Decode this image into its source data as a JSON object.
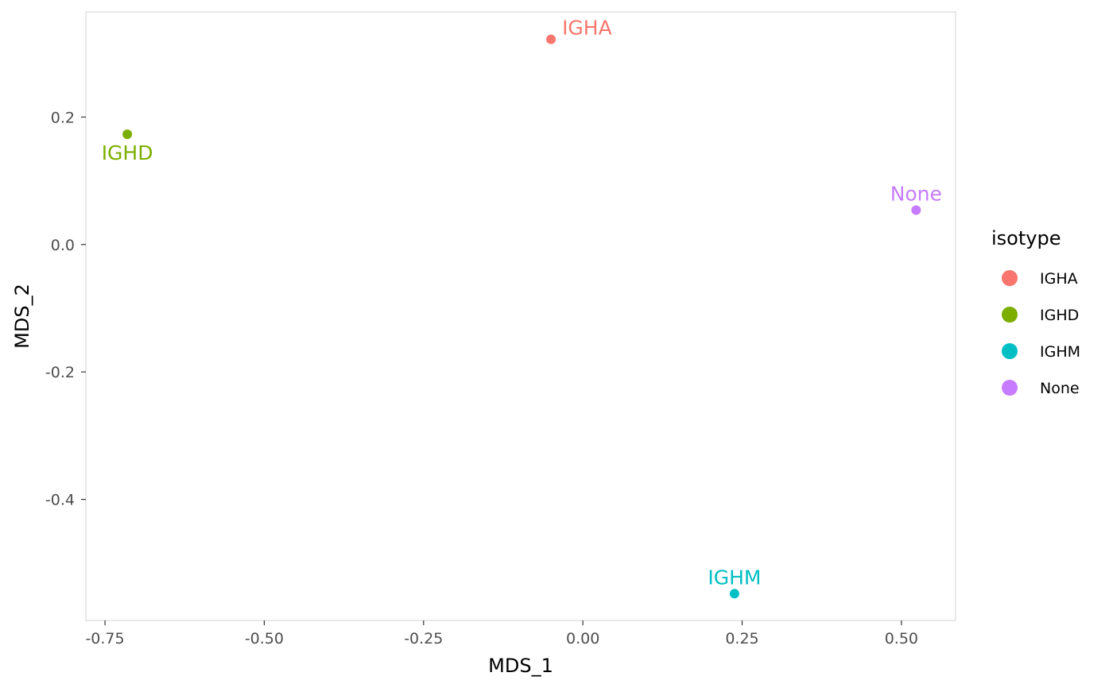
{
  "chart_data": {
    "type": "scatter",
    "xlabel": "MDS_1",
    "ylabel": "MDS_2",
    "xlim": [
      -0.78,
      0.585
    ],
    "ylim": [
      -0.59,
      0.365
    ],
    "x_ticks": [
      -0.75,
      -0.5,
      -0.25,
      0.0,
      0.25,
      0.5
    ],
    "x_tick_labels": [
      "-0.75",
      "-0.50",
      "-0.25",
      "0.00",
      "0.25",
      "0.50"
    ],
    "y_ticks": [
      0.2,
      0.0,
      -0.2,
      -0.4
    ],
    "y_tick_labels": [
      "0.2",
      "0.0",
      "-0.2",
      "-0.4"
    ],
    "grid": false,
    "legend": {
      "title": "isotype",
      "position": "right",
      "entries": [
        "IGHA",
        "IGHD",
        "IGHM",
        "None"
      ]
    },
    "colors": {
      "IGHA": "#F8766D",
      "IGHD": "#7CAE00",
      "IGHM": "#00BFC4",
      "None": "#C77CFF"
    },
    "points": [
      {
        "label": "IGHA",
        "x": -0.05,
        "y": 0.322,
        "label_placement": "above-right"
      },
      {
        "label": "IGHD",
        "x": -0.715,
        "y": 0.173,
        "label_placement": "below"
      },
      {
        "label": "IGHM",
        "x": 0.238,
        "y": -0.548,
        "label_placement": "above"
      },
      {
        "label": "None",
        "x": 0.523,
        "y": 0.054,
        "label_placement": "above"
      }
    ]
  }
}
